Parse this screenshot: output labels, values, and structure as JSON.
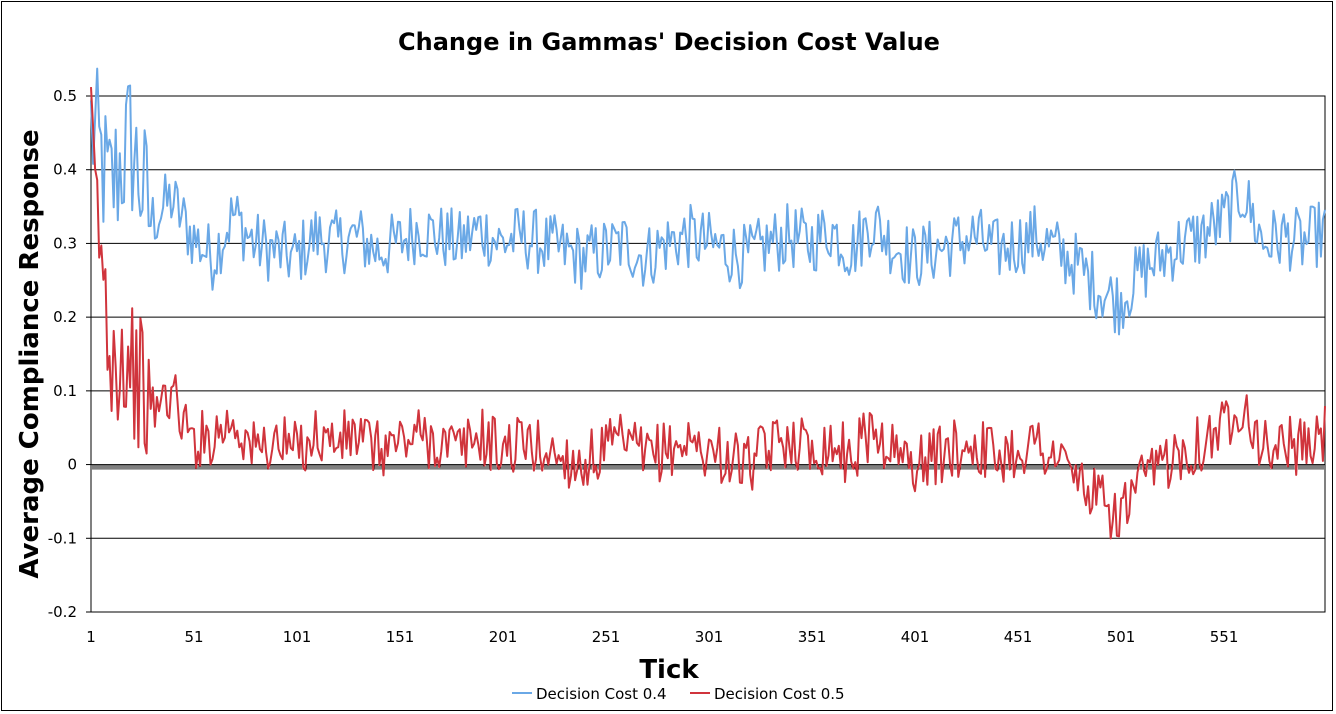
{
  "chart_data": {
    "type": "line",
    "title": "Change in Gammas' Decision Cost Value",
    "xlabel": "Tick",
    "ylabel": "Average Compliance Response",
    "ylim": [
      -0.2,
      0.5
    ],
    "yticks": [
      -0.2,
      -0.1,
      0,
      0.1,
      0.2,
      0.3,
      0.4,
      0.5
    ],
    "ytick_labels": [
      "-0.2",
      "-0.1",
      "0",
      "0.1",
      "0.2",
      "0.3",
      "0.4",
      "0.5"
    ],
    "xlim": [
      1,
      600
    ],
    "xticks": [
      1,
      51,
      101,
      151,
      201,
      251,
      301,
      351,
      401,
      451,
      501,
      551
    ],
    "xtick_labels": [
      "1",
      "51",
      "101",
      "151",
      "201",
      "251",
      "301",
      "351",
      "401",
      "451",
      "501",
      "551"
    ],
    "grid": "horizontal",
    "legend_position": "bottom",
    "series": [
      {
        "name": "Decision Cost 0.4",
        "color": "#6aa8e6",
        "x": [
          1,
          10,
          20,
          30,
          40,
          50,
          60,
          70,
          80,
          90,
          100,
          110,
          120,
          130,
          140,
          150,
          160,
          170,
          180,
          190,
          200,
          210,
          220,
          230,
          240,
          250,
          260,
          270,
          280,
          290,
          300,
          310,
          320,
          330,
          340,
          350,
          360,
          370,
          380,
          390,
          400,
          410,
          420,
          430,
          440,
          450,
          460,
          470,
          480,
          490,
          500,
          510,
          520,
          530,
          540,
          550,
          560,
          570,
          580,
          590,
          600
        ],
        "values": [
          0.46,
          0.37,
          0.44,
          0.33,
          0.36,
          0.31,
          0.28,
          0.34,
          0.3,
          0.29,
          0.28,
          0.31,
          0.3,
          0.31,
          0.29,
          0.3,
          0.32,
          0.31,
          0.3,
          0.32,
          0.3,
          0.31,
          0.3,
          0.29,
          0.28,
          0.29,
          0.3,
          0.28,
          0.3,
          0.31,
          0.3,
          0.29,
          0.28,
          0.3,
          0.31,
          0.3,
          0.32,
          0.29,
          0.33,
          0.3,
          0.28,
          0.29,
          0.3,
          0.31,
          0.29,
          0.3,
          0.31,
          0.29,
          0.27,
          0.24,
          0.22,
          0.26,
          0.28,
          0.3,
          0.31,
          0.33,
          0.37,
          0.3,
          0.31,
          0.3,
          0.32
        ]
      },
      {
        "name": "Decision Cost 0.5",
        "color": "#d0343c",
        "x": [
          1,
          10,
          20,
          30,
          40,
          50,
          60,
          70,
          80,
          90,
          100,
          110,
          120,
          130,
          140,
          150,
          160,
          170,
          180,
          190,
          200,
          210,
          220,
          230,
          240,
          250,
          260,
          270,
          280,
          290,
          300,
          310,
          320,
          330,
          340,
          350,
          360,
          370,
          380,
          390,
          400,
          410,
          420,
          430,
          440,
          450,
          460,
          470,
          480,
          490,
          500,
          510,
          520,
          530,
          540,
          550,
          560,
          570,
          580,
          590,
          600
        ],
        "values": [
          0.43,
          0.16,
          0.14,
          0.07,
          0.1,
          0.03,
          0.04,
          0.06,
          0.02,
          0.03,
          0.02,
          0.04,
          0.03,
          0.04,
          0.02,
          0.03,
          0.04,
          0.03,
          0.02,
          0.04,
          0.02,
          0.03,
          0.02,
          0.01,
          0.0,
          0.02,
          0.03,
          0.01,
          0.02,
          0.03,
          0.02,
          0.01,
          0.0,
          0.02,
          0.04,
          0.02,
          0.03,
          0.01,
          0.05,
          0.02,
          0.0,
          0.01,
          0.02,
          0.03,
          0.01,
          0.02,
          0.03,
          0.01,
          -0.02,
          -0.05,
          -0.07,
          -0.03,
          0.0,
          0.02,
          0.03,
          0.05,
          0.09,
          0.02,
          0.03,
          0.02,
          0.04
        ]
      }
    ]
  }
}
